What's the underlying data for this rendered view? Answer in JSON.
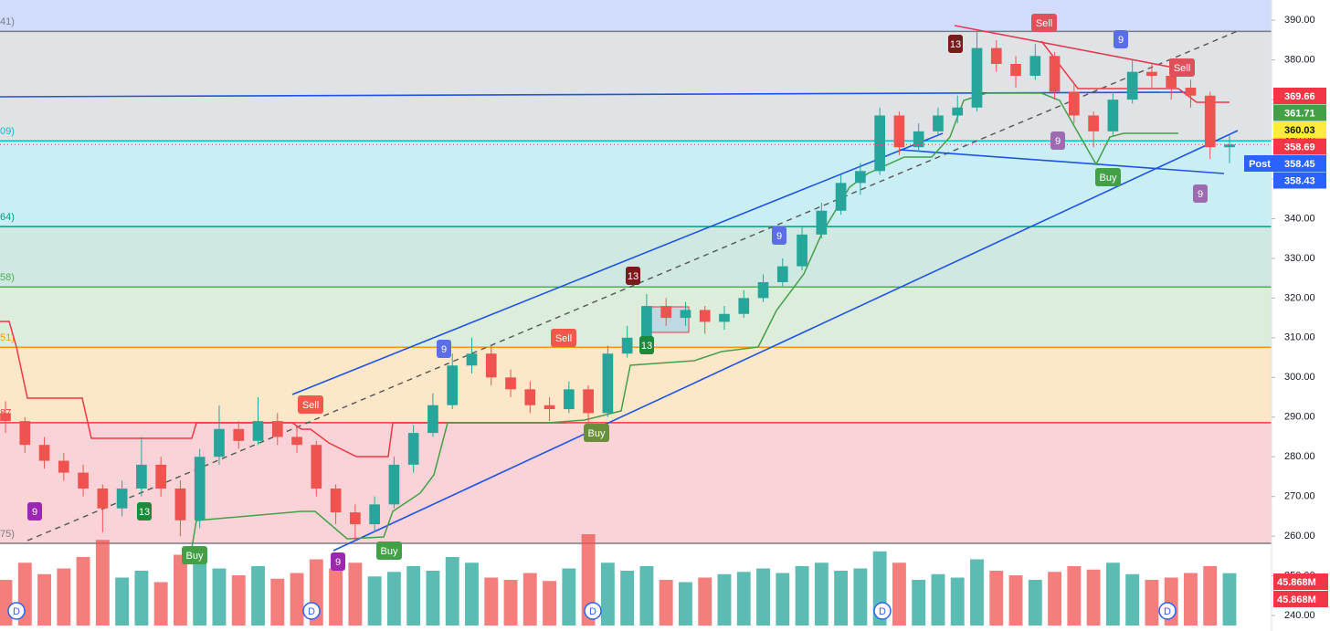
{
  "chart_data": {
    "type": "candlestick",
    "ylim": [
      236.1,
      395.1
    ],
    "yticks": [
      {
        "value": 240,
        "label": "240.00"
      },
      {
        "value": 250,
        "label": "250.00"
      },
      {
        "value": 260,
        "label": "260.00"
      },
      {
        "value": 270,
        "label": "270.00"
      },
      {
        "value": 280,
        "label": "280.00"
      },
      {
        "value": 290,
        "label": "290.00"
      },
      {
        "value": 300,
        "label": "300.00"
      },
      {
        "value": 310,
        "label": "310.00"
      },
      {
        "value": 320,
        "label": "320.00"
      },
      {
        "value": 330,
        "label": "330.00"
      },
      {
        "value": 340,
        "label": "340.00"
      },
      {
        "value": 350,
        "label": "350.00"
      },
      {
        "value": 360,
        "label": "360.00"
      },
      {
        "value": 370,
        "label": "370.00"
      },
      {
        "value": 380,
        "label": "380.00"
      },
      {
        "value": 390,
        "label": "390.00"
      }
    ],
    "up_color": "#26a69a",
    "down_color": "#ef5350",
    "top_fill": "#d1dcfd",
    "fib_levels": [
      {
        "value": 387.2,
        "label": "41)",
        "color": "#787b86",
        "fill": "#e0e3e6"
      },
      {
        "value": 359.6,
        "label": "09)",
        "color": "#00bcd4",
        "fill": "#c9eef3"
      },
      {
        "value": 338.0,
        "label": "64)",
        "color": "#089981",
        "fill": "#cfe9e2"
      },
      {
        "value": 322.8,
        "label": "58)",
        "color": "#4caf50",
        "fill": "#dceedb"
      },
      {
        "value": 307.6,
        "label": "51)",
        "color": "#ff9800",
        "fill": "#fde7c9"
      },
      {
        "value": 288.6,
        "label": "87",
        "color": "#f23645",
        "fill": "#f9d3d7"
      },
      {
        "value": 258.2,
        "label": "75)",
        "color": "#787b86",
        "fill": "#ffffff"
      }
    ],
    "candles": [
      [
        291,
        294,
        286,
        289
      ],
      [
        289,
        290,
        281,
        283
      ],
      [
        283,
        285,
        277,
        279
      ],
      [
        279,
        281,
        274,
        276
      ],
      [
        276,
        278,
        270,
        272
      ],
      [
        272,
        273,
        261,
        267
      ],
      [
        267,
        274,
        265,
        272
      ],
      [
        272,
        285,
        270,
        278
      ],
      [
        278,
        280,
        270,
        272
      ],
      [
        272,
        274,
        260,
        264
      ],
      [
        264,
        282,
        262,
        280
      ],
      [
        280,
        293,
        278,
        287
      ],
      [
        287,
        289,
        282,
        284
      ],
      [
        284,
        295,
        283,
        289
      ],
      [
        289,
        291,
        283,
        285
      ],
      [
        285,
        288,
        281,
        283
      ],
      [
        283,
        284,
        270,
        272
      ],
      [
        272,
        273,
        263,
        266
      ],
      [
        266,
        268,
        259,
        263
      ],
      [
        263,
        270,
        261,
        268
      ],
      [
        268,
        280,
        267,
        278
      ],
      [
        278,
        288,
        276,
        286
      ],
      [
        286,
        296,
        285,
        293
      ],
      [
        293,
        306,
        292,
        303
      ],
      [
        303,
        310,
        301,
        306
      ],
      [
        306,
        308,
        298,
        300
      ],
      [
        300,
        302,
        295,
        297
      ],
      [
        297,
        299,
        291,
        293
      ],
      [
        293,
        295,
        289,
        292
      ],
      [
        292,
        299,
        291,
        297
      ],
      [
        297,
        298,
        287,
        291
      ],
      [
        291,
        308,
        290,
        306
      ],
      [
        306,
        313,
        305,
        310
      ],
      [
        310,
        321,
        309,
        318
      ],
      [
        318,
        320,
        313,
        315
      ],
      [
        315,
        319,
        313,
        317
      ],
      [
        317,
        318,
        311,
        314
      ],
      [
        314,
        318,
        312,
        316
      ],
      [
        316,
        322,
        315,
        320
      ],
      [
        320,
        326,
        319,
        324
      ],
      [
        324,
        330,
        323,
        328
      ],
      [
        328,
        338,
        327,
        336
      ],
      [
        336,
        344,
        335,
        342
      ],
      [
        342,
        351,
        341,
        349
      ],
      [
        349,
        354,
        346,
        352
      ],
      [
        352,
        368,
        351,
        366
      ],
      [
        366,
        367,
        356,
        358
      ],
      [
        358,
        364,
        357,
        362
      ],
      [
        362,
        368,
        361,
        366
      ],
      [
        366,
        371,
        364,
        368
      ],
      [
        368,
        387,
        367,
        383
      ],
      [
        383,
        385,
        377,
        379
      ],
      [
        379,
        381,
        373,
        376
      ],
      [
        376,
        384,
        375,
        381
      ],
      [
        381,
        382,
        370,
        372
      ],
      [
        372,
        374,
        364,
        366
      ],
      [
        366,
        367,
        358,
        362
      ],
      [
        362,
        372,
        361,
        370
      ],
      [
        370,
        380,
        369,
        377
      ],
      [
        377,
        379,
        373,
        376
      ],
      [
        376,
        378,
        370,
        373
      ],
      [
        373,
        375,
        368,
        371
      ],
      [
        371,
        372,
        355,
        358
      ],
      [
        358,
        361,
        354,
        358.69
      ]
    ],
    "volumes": [
      40,
      55,
      45,
      50,
      60,
      75,
      42,
      48,
      38,
      62,
      55,
      50,
      44,
      52,
      41,
      46,
      58,
      50,
      55,
      43,
      47,
      52,
      48,
      60,
      55,
      42,
      40,
      46,
      39,
      50,
      80,
      55,
      48,
      52,
      40,
      38,
      42,
      45,
      47,
      50,
      46,
      52,
      55,
      48,
      50,
      65,
      55,
      40,
      45,
      42,
      58,
      48,
      44,
      40,
      47,
      52,
      49,
      55,
      45,
      40,
      42,
      46,
      52,
      45.868
    ],
    "price_tags": [
      {
        "value": 369.66,
        "color": "#f23645"
      },
      {
        "value": 361.71,
        "color": "#43a047"
      },
      {
        "value": 360.03,
        "color": "#ffeb3b"
      },
      {
        "value": 358.69,
        "color": "#f23645"
      },
      {
        "value": 358.45,
        "color": "#2962ff"
      },
      {
        "value": 358.43,
        "color": "#2962ff"
      }
    ],
    "post_label": "Post",
    "volume_tags": [
      {
        "value": 45.868,
        "label": "45.868M",
        "color": "#f23645"
      },
      {
        "value": 45.868,
        "label": "45.868M",
        "color": "#f23645"
      }
    ],
    "signals": [
      "9",
      "13",
      "Buy",
      "Sell",
      "9",
      "Buy",
      "9",
      "Sell",
      "Buy",
      "13",
      "13",
      "9",
      "13",
      "Sell",
      "9",
      "9",
      "Buy",
      "Sell",
      "9"
    ],
    "dividends": [
      "D",
      "D",
      "D",
      "D",
      "D"
    ]
  }
}
